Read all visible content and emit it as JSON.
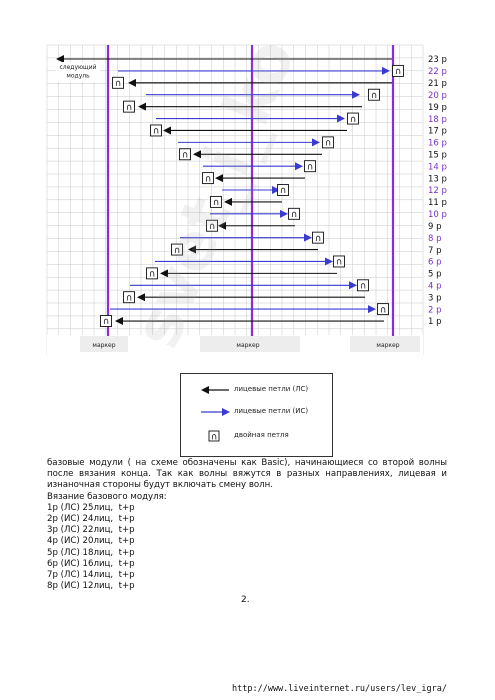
{
  "chart": {
    "next_module_label": "следующий\nмодуль",
    "marker_labels": [
      "маркер",
      "маркер",
      "маркер"
    ],
    "row_labels": [
      "23 р",
      "22 р",
      "21 р",
      "20 р",
      "19 р",
      "18 р",
      "17 р",
      "16 р",
      "15 р",
      "14 р",
      "13 р",
      "12 р",
      "11 р",
      "10 р",
      "9 р",
      "8 р",
      "7 р",
      "6 р",
      "5 р",
      "4 р",
      "3 р",
      "2 р",
      "1 р"
    ]
  },
  "legend": {
    "items": [
      {
        "label": "лицевые петли (ЛС)"
      },
      {
        "label": "лицевые петли (ИС)"
      },
      {
        "label": "двойная петля",
        "icon": "∩"
      }
    ]
  },
  "colors": {
    "purple_marker": "#8a2be2",
    "black_arrow": "#111111",
    "blue_arrow": "#3a3ad0",
    "purple_row_label": "#7b2fbf"
  },
  "text": {
    "paragraph": "базовые модули ( на схеме обозначены как Basic), начинающиеся со второй волны после вязания конца. Так как волны вяжутся в разных направлениях, лицевая и изнаночная стороны будут включать смену волн.",
    "heading": "Вязание базового модуля:",
    "lines": [
      "1р (ЛС) 25лиц,  t+p",
      "2р (ИС) 24лиц,  t+p",
      "3р (ЛС) 22лиц,  t+p",
      "4р (ИС) 20лиц,  t+p",
      "5р (ЛС) 18лиц,  t+p",
      "6р (ИС) 16лиц,  t+p",
      "7р (ЛС) 14лиц,  t+p",
      "8р (ИС) 12лиц,  t+p"
    ]
  },
  "page_number": "2.",
  "footer_url": "http://www.liveinternet.ru/users/lev_igra/",
  "watermark": "svet_i_ko"
}
